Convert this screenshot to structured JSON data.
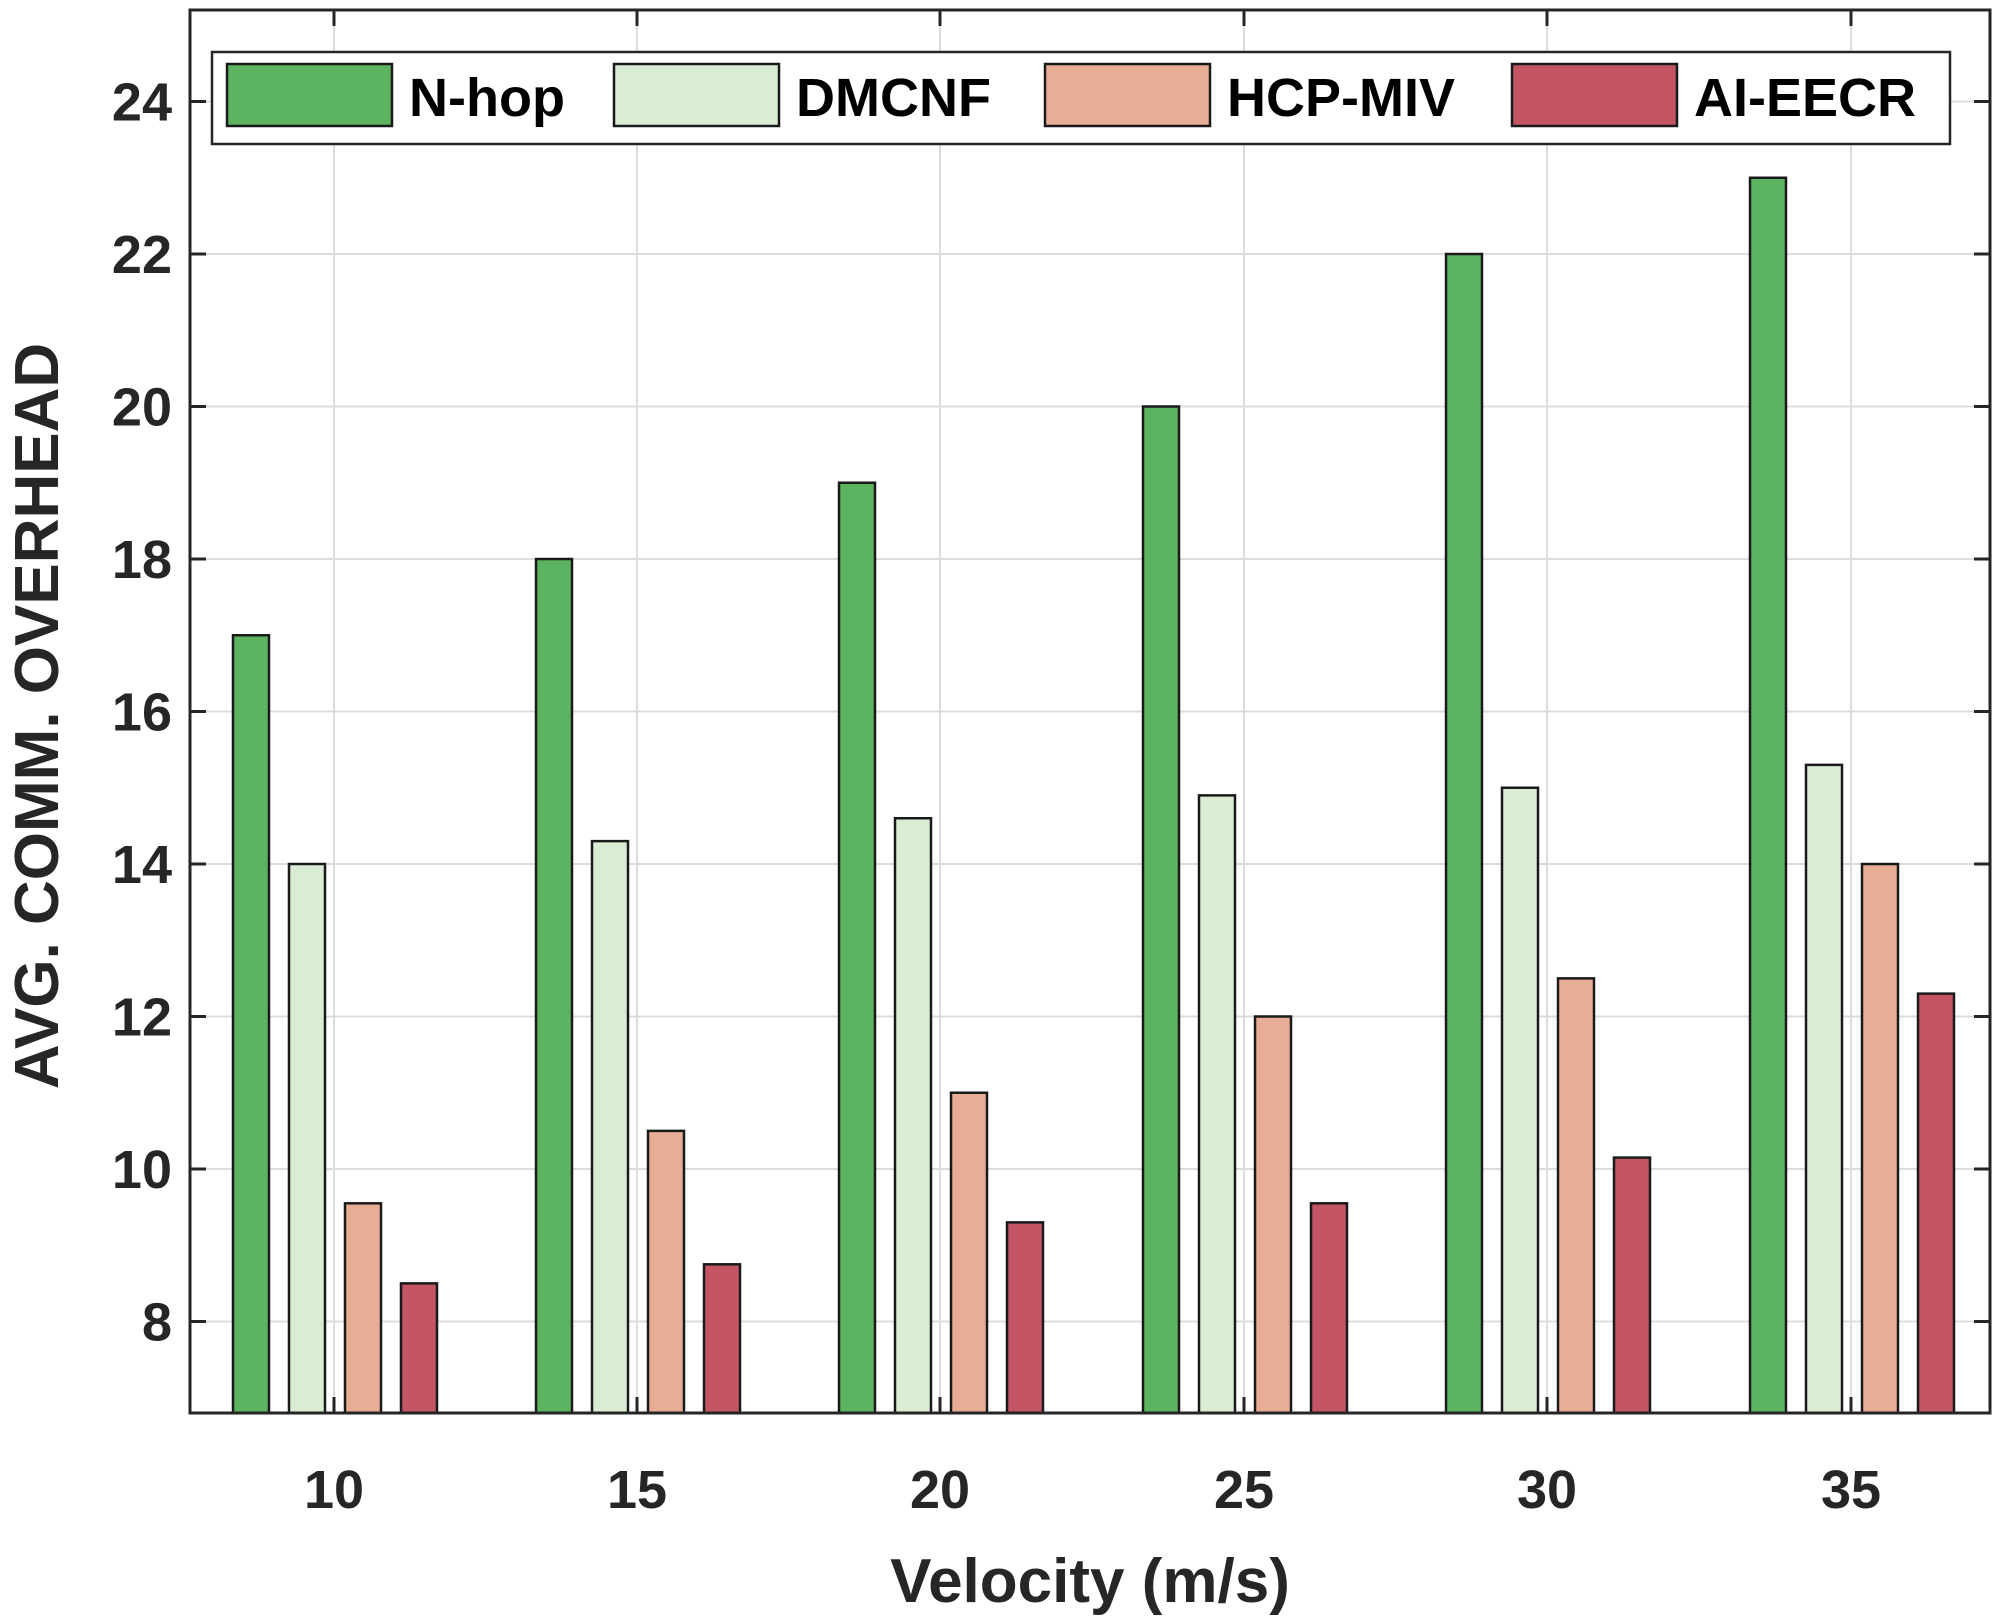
{
  "chart_data": {
    "type": "bar",
    "title": "",
    "xlabel": "Velocity (m/s)",
    "ylabel": "AVG. COMM. OVERHEAD",
    "categories": [
      "10",
      "15",
      "20",
      "25",
      "30",
      "35"
    ],
    "ylim": [
      6.8,
      25.2
    ],
    "yticks": [
      "8",
      "10",
      "12",
      "14",
      "16",
      "18",
      "20",
      "22",
      "24"
    ],
    "grid": true,
    "legend_position": "top",
    "series": [
      {
        "name": "N-hop",
        "color": "#5cb360",
        "values": [
          17,
          18,
          19,
          20,
          22,
          23
        ]
      },
      {
        "name": "DMCNF",
        "color": "#d9ecd4",
        "values": [
          14,
          14.3,
          14.6,
          14.9,
          15,
          15.3
        ]
      },
      {
        "name": "HCP-MIV",
        "color": "#e8ad95",
        "values": [
          9.55,
          10.5,
          11,
          12,
          12.5,
          14
        ]
      },
      {
        "name": "AI-EECR",
        "color": "#c45565",
        "values": [
          8.5,
          8.75,
          9.3,
          9.55,
          10.15,
          12.3
        ]
      }
    ]
  }
}
